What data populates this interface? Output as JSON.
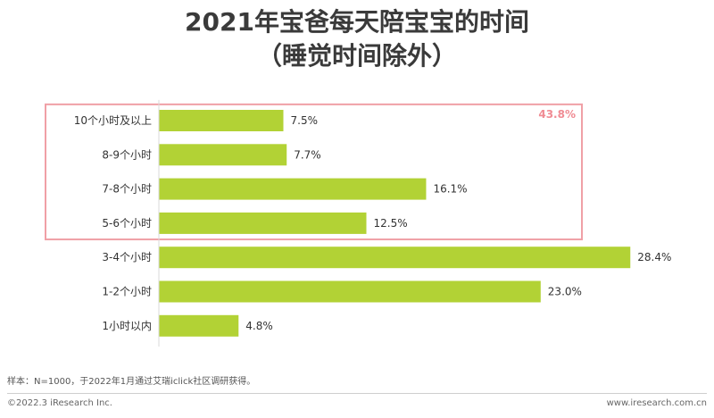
{
  "chart_data": {
    "type": "bar",
    "orientation": "horizontal",
    "title": "2021年宝爸每天陪宝宝的时间",
    "subtitle": "（睡觉时间除外）",
    "categories": [
      "10个小时及以上",
      "8-9个小时",
      "7-8个小时",
      "5-6个小时",
      "3-4个小时",
      "1-2个小时",
      "1小时以内"
    ],
    "values": [
      7.5,
      7.7,
      16.1,
      12.5,
      28.4,
      23.0,
      4.8
    ],
    "value_labels": [
      "7.5%",
      "7.7%",
      "16.1%",
      "12.5%",
      "28.4%",
      "23.0%",
      "4.8%"
    ],
    "xlim": [
      0,
      30
    ],
    "bar_color": "#b2d235",
    "highlight": {
      "categories": [
        "10个小时及以上",
        "8-9个小时",
        "7-8个小时",
        "5-6个小时"
      ],
      "label": "43.8%",
      "color": "#f0a0a6",
      "label_color": "#f08c94"
    }
  },
  "footer": {
    "note": "样本：N=1000，于2022年1月通过艾瑞iclick社区调研获得。",
    "copyright": "©2022.3 iResearch Inc.",
    "site": "www.iresearch.com.cn"
  }
}
